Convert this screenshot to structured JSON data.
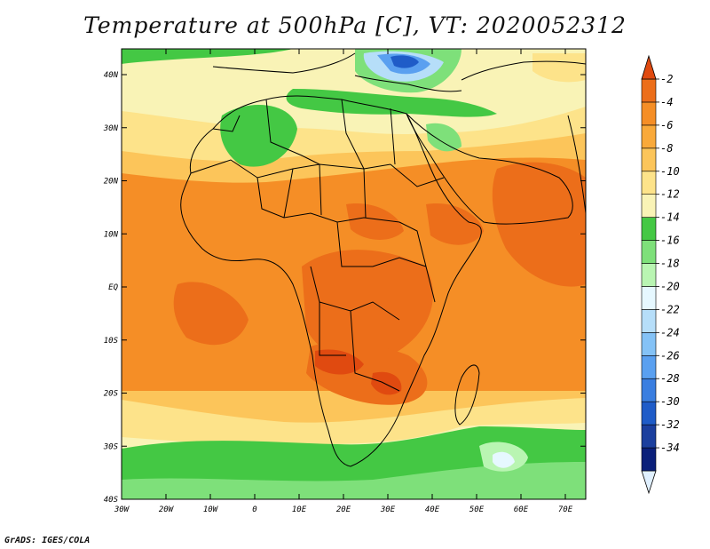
{
  "title": "Temperature at 500hPa [C], VT: 2020052312",
  "credit": "GrADS: IGES/COLA",
  "map": {
    "lat_labels": [
      "40N",
      "30N",
      "20N",
      "10N",
      "EQ",
      "10S",
      "20S",
      "30S",
      "40S"
    ],
    "lon_labels": [
      "30W",
      "20W",
      "10W",
      "0",
      "10E",
      "20E",
      "30E",
      "40E",
      "50E",
      "60E",
      "70E"
    ]
  },
  "colorbar": {
    "labels": [
      "-2",
      "-4",
      "-6",
      "-8",
      "-10",
      "-12",
      "-14",
      "-16",
      "-18",
      "-20",
      "-22",
      "-24",
      "-26",
      "-28",
      "-30",
      "-32",
      "-34"
    ],
    "colors": [
      "#e0f0ff",
      "#0a1f7a",
      "#1b3f9e",
      "#1f5cc8",
      "#3a7ee0",
      "#5aa0f0",
      "#84c2f6",
      "#b6def9",
      "#e6f8ff",
      "#b9f5b2",
      "#7ee07a",
      "#44c844",
      "#f9f3b6",
      "#fde38a",
      "#fcc55a",
      "#f9a93a",
      "#f58e26",
      "#ec6e1a",
      "#e04a10"
    ]
  }
}
